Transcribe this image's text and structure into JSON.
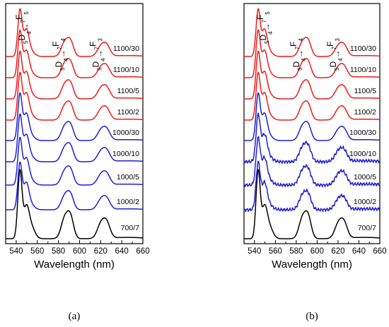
{
  "chart_data": [
    {
      "type": "line",
      "panel_label": "(a)",
      "xlabel": "Wavelength (nm)",
      "ylabel": "",
      "xlim": [
        530,
        660
      ],
      "x_ticks": [
        540,
        560,
        580,
        600,
        620,
        640,
        660
      ],
      "y_ticks": false,
      "grid": false,
      "annotations": [
        {
          "upper": "5",
          "main": "D",
          "sub": "4",
          "arrow": "→",
          "upper2": "7",
          "main2": "F",
          "sub2": "5",
          "x": 550
        },
        {
          "upper": "5",
          "main": "D",
          "sub": "4",
          "arrow": "→",
          "upper2": "7",
          "main2": "F",
          "sub2": "4",
          "x": 589
        },
        {
          "upper": "5",
          "main": "D",
          "sub": "4",
          "arrow": "→",
          "upper2": "7",
          "main2": "F",
          "sub2": "3",
          "x": 624
        }
      ],
      "series": [
        {
          "name": "700/7",
          "color": "#000000"
        },
        {
          "name": "1000/2",
          "color": "#1f1fd6"
        },
        {
          "name": "1000/5",
          "color": "#1f1fd6"
        },
        {
          "name": "1000/10",
          "color": "#1f1fd6"
        },
        {
          "name": "1000/30",
          "color": "#1f1fd6"
        },
        {
          "name": "1100/2",
          "color": "#ee1c1c"
        },
        {
          "name": "1100/5",
          "color": "#ee1c1c"
        },
        {
          "name": "1100/10",
          "color": "#ee1c1c"
        },
        {
          "name": "1100/30",
          "color": "#ee1c1c"
        }
      ]
    },
    {
      "type": "line",
      "panel_label": "(b)",
      "xlabel": "Wavelength (nm)",
      "ylabel": "",
      "xlim": [
        530,
        660
      ],
      "x_ticks": [
        540,
        560,
        580,
        600,
        620,
        640,
        660
      ],
      "y_ticks": false,
      "grid": false,
      "annotations": [
        {
          "upper": "5",
          "main": "D",
          "sub": "4",
          "arrow": "→",
          "upper2": "7",
          "main2": "F",
          "sub2": "5",
          "x": 553
        },
        {
          "upper": "5",
          "main": "D",
          "sub": "4",
          "arrow": "→",
          "upper2": "7",
          "main2": "F",
          "sub2": "4",
          "x": 589
        },
        {
          "upper": "5",
          "main": "D",
          "sub": "4",
          "arrow": "→",
          "upper2": "7",
          "main2": "F",
          "sub2": "3",
          "x": 624
        }
      ],
      "series": [
        {
          "name": "700/7",
          "color": "#000000"
        },
        {
          "name": "1000/2",
          "color": "#1f1fd6"
        },
        {
          "name": "1000/5",
          "color": "#1f1fd6"
        },
        {
          "name": "1000/10",
          "color": "#1f1fd6"
        },
        {
          "name": "1000/30",
          "color": "#1f1fd6"
        },
        {
          "name": "1100/2",
          "color": "#ee1c1c"
        },
        {
          "name": "1100/5",
          "color": "#ee1c1c"
        },
        {
          "name": "1100/10",
          "color": "#ee1c1c"
        },
        {
          "name": "1100/30",
          "color": "#ee1c1c"
        }
      ]
    }
  ]
}
